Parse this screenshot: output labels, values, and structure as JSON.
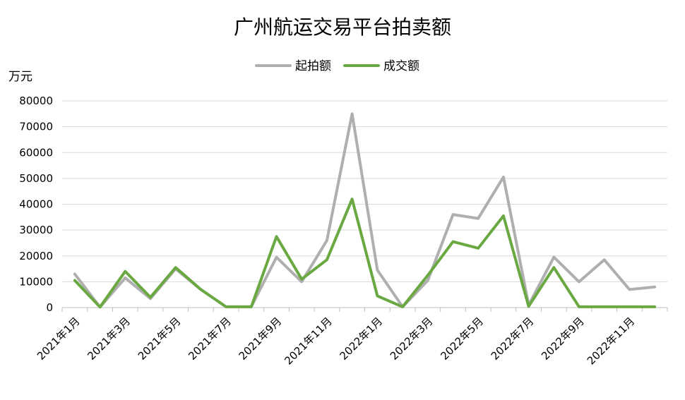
{
  "chart_data": {
    "type": "line",
    "title": "广州航运交易平台拍卖额",
    "ylabel": "万元",
    "xlabel": "",
    "ylim": [
      0,
      80000
    ],
    "y_ticks": [
      "0",
      "10000",
      "20000",
      "30000",
      "40000",
      "50000",
      "60000",
      "70000",
      "80000"
    ],
    "grid": true,
    "legend_position": "top",
    "categories": [
      "2021年1月",
      "2021年2月",
      "2021年3月",
      "2021年4月",
      "2021年5月",
      "2021年6月",
      "2021年7月",
      "2021年8月",
      "2021年9月",
      "2021年10月",
      "2021年11月",
      "2021年12月",
      "2022年1月",
      "2022年2月",
      "2022年3月",
      "2022年4月",
      "2022年5月",
      "2022年6月",
      "2022年7月",
      "2022年8月",
      "2022年9月",
      "2022年10月",
      "2022年11月",
      "2022年12月"
    ],
    "x_tick_labels": [
      "2021年1月",
      "2021年3月",
      "2021年5月",
      "2021年7月",
      "2021年9月",
      "2021年11月",
      "2022年1月",
      "2022年3月",
      "2022年5月",
      "2022年7月",
      "2022年9月",
      "2022年11月"
    ],
    "series": [
      {
        "name": "起拍额",
        "color": "#b0afaf",
        "values": [
          13000,
          200,
          11500,
          3500,
          15000,
          7000,
          300,
          300,
          19500,
          10000,
          26000,
          75000,
          14500,
          300,
          10500,
          36000,
          34500,
          50500,
          1000,
          19500,
          10000,
          18500,
          7000,
          8000
        ]
      },
      {
        "name": "成交额",
        "color": "#6aa842",
        "values": [
          10500,
          200,
          14000,
          4000,
          15500,
          7000,
          300,
          300,
          27500,
          11000,
          18500,
          42000,
          4500,
          300,
          12500,
          25500,
          23000,
          35500,
          500,
          15500,
          300,
          300,
          300,
          300
        ]
      }
    ]
  }
}
